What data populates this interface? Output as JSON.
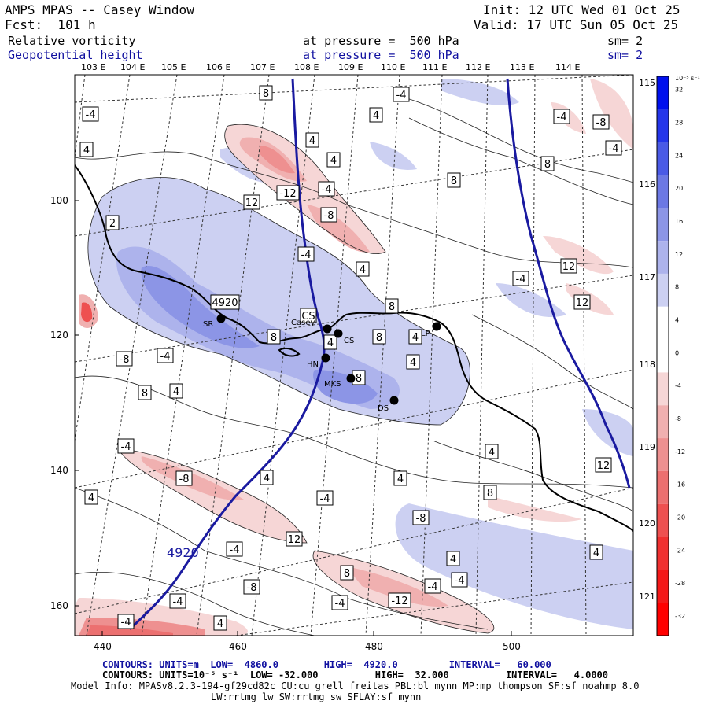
{
  "header": {
    "title": "AMPS MPAS -- Casey Window",
    "forecast": "Fcst:  101 h",
    "init": "Init: 12 UTC Wed 01 Oct 25",
    "valid": "Valid: 17 UTC Sun 05 Oct 25",
    "field1_name": "Relative vorticity",
    "field1_level": "at pressure =  500 hPa",
    "field1_sm": "sm= 2",
    "field2_name": "Geopotential height",
    "field2_level": "at pressure =  500 hPa",
    "field2_sm": "sm= 2"
  },
  "map": {
    "lon_labels_top": [
      "103 E",
      "104 E",
      "105 E",
      "106 E",
      "107 E",
      "108 E",
      "109 E",
      "110 E",
      "111 E",
      "112 E",
      "113 E",
      "114 E"
    ],
    "lat_labels_right": [
      "115 E",
      "116 E",
      "117 E",
      "118 E",
      "119 E",
      "120 E",
      "121 E"
    ],
    "y_axis_ticks": [
      "100",
      "120",
      "140",
      "160"
    ],
    "x_axis_ticks": [
      "440",
      "460",
      "480",
      "500"
    ],
    "stations": [
      {
        "code": "SR"
      },
      {
        "code": "Casey"
      },
      {
        "code": "CS"
      },
      {
        "code": "HN"
      },
      {
        "code": "MKS"
      },
      {
        "code": "DS"
      },
      {
        "code": "LP"
      }
    ],
    "height_contour_label": "4920",
    "vort_contour_labels": [
      "-4",
      "8",
      "-4",
      "4",
      "-4",
      "-8",
      "-4",
      "4",
      "4",
      "4",
      "8",
      "8",
      "-12",
      "-4",
      "-8",
      "2",
      "12",
      "-4",
      "4",
      "-4",
      "12",
      "12",
      "4920",
      "CS",
      "4",
      "8",
      "8",
      "4",
      "8",
      "-8",
      "-4",
      "4",
      "8",
      "4",
      "8",
      "-4",
      "-8",
      "4",
      "-4",
      "4",
      "4",
      "8",
      "-8",
      "-4",
      "12",
      "8",
      "4",
      "-4",
      "4",
      "-4",
      "-8",
      "-4",
      "-12",
      "-4",
      "-4",
      "4",
      "12",
      "4"
    ]
  },
  "colorbar": {
    "unit": "10⁻⁵ s⁻¹",
    "ticks": [
      "32",
      "28",
      "24",
      "20",
      "16",
      "12",
      "8",
      "4",
      "0",
      "-4",
      "-8",
      "-12",
      "-16",
      "-20",
      "-24",
      "-28",
      "-32"
    ],
    "colors": [
      "#0010ee",
      "#2435ea",
      "#4a5ae6",
      "#6c78e4",
      "#8c95e6",
      "#adb3ec",
      "#ccd0f2",
      "#ffffff",
      "#ffffff",
      "#f6d6d6",
      "#f0b0b0",
      "#ee9090",
      "#ec7070",
      "#ee5050",
      "#f03030",
      "#f41818",
      "#ff0000"
    ]
  },
  "footer": {
    "line1": "CONTOURS: UNITS=m  LOW=  4860.0        HIGH=  4920.0         INTERVAL=   60.000",
    "line2": "CONTOURS: UNITS=10⁻⁵ s⁻¹  LOW= -32.000          HIGH=  32.000          INTERVAL=   4.0000",
    "line3": "Model Info: MPASv8.2.3-194-gf29cd82c CU:cu_grell_freitas PBL:bl_mynn MP:mp_thompson SF:sf_noahmp 8.0",
    "line4": "LW:rrtmg_lw SW:rrtmg_sw SFLAY:sf_mynn"
  }
}
